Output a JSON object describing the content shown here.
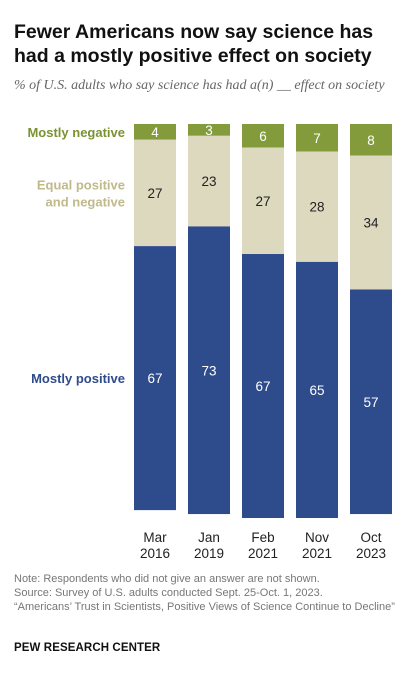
{
  "title": "Fewer Americans now say science has had a mostly positive effect on society",
  "subtitle": "% of U.S. adults who say science has had a(n) __ effect on society",
  "colors": {
    "mostly_negative": "#849b3c",
    "equal": "#dcd9be",
    "mostly_positive": "#2e4b8c",
    "label_positive": "#2e4b8c",
    "label_equal": "#c0b98a",
    "label_negative": "#7b9233"
  },
  "chart_data": {
    "type": "bar",
    "stacked": true,
    "categories": [
      [
        "Mar",
        "2016"
      ],
      [
        "Jan",
        "2019"
      ],
      [
        "Feb",
        "2021"
      ],
      [
        "Nov",
        "2021"
      ],
      [
        "Oct",
        "2023"
      ]
    ],
    "series": [
      {
        "name": "Mostly positive",
        "key": "mostly_positive",
        "values": [
          67,
          73,
          67,
          65,
          57
        ]
      },
      {
        "name": "Equal positive and negative",
        "key": "equal",
        "values": [
          27,
          23,
          27,
          28,
          34
        ]
      },
      {
        "name": "Mostly negative",
        "key": "mostly_negative",
        "values": [
          4,
          3,
          6,
          7,
          8
        ]
      }
    ],
    "row_labels": {
      "mostly_negative": [
        "Mostly negative"
      ],
      "equal": [
        "Equal positive",
        "and negative"
      ],
      "mostly_positive": [
        "Mostly positive"
      ]
    },
    "ylim": [
      0,
      100
    ]
  },
  "notes": {
    "note": "Note: Respondents who did not give an answer are not shown.",
    "source": "Source: Survey of U.S. adults conducted Sept. 25-Oct. 1, 2023.",
    "report": "“Americans’ Trust in Scientists, Positive Views of Science Continue to Decline”"
  },
  "credit": "PEW RESEARCH CENTER"
}
